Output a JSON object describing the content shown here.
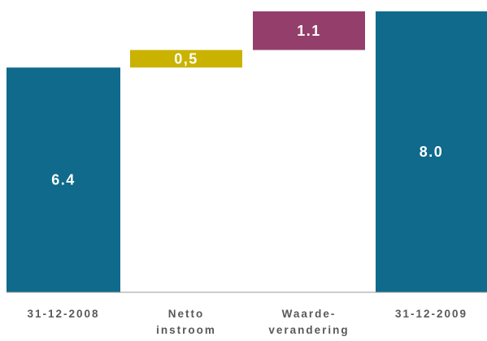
{
  "chart_data": {
    "type": "bar",
    "subtype": "waterfall",
    "categories": [
      [
        "31-12-2008"
      ],
      [
        "Netto",
        "instroom"
      ],
      [
        "Waarde-",
        "verandering"
      ],
      [
        "31-12-2009"
      ]
    ],
    "values": [
      6.4,
      0.5,
      1.1,
      8.0
    ],
    "value_labels": [
      "6.4",
      "0,5",
      "1.1",
      "8.0"
    ],
    "bar_kinds": [
      "total",
      "delta",
      "delta",
      "total"
    ],
    "colors": [
      "#106a8c",
      "#c9b300",
      "#943f6b",
      "#106a8c"
    ],
    "ylim": [
      0,
      8.0
    ],
    "grid": false,
    "legend": "none",
    "title": "",
    "xlabel": "",
    "ylabel": ""
  }
}
